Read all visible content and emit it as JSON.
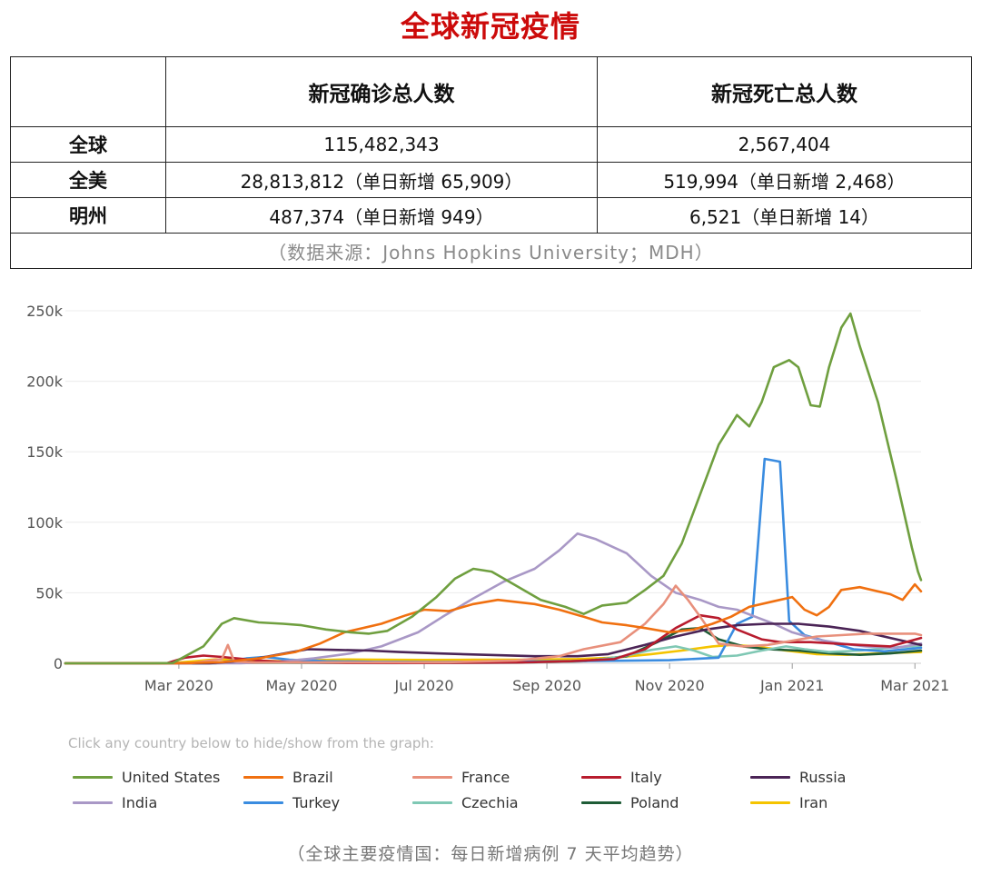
{
  "headline": "全球新冠疫情",
  "table": {
    "header": [
      "",
      "新冠确诊总人数",
      "新冠死亡总人数"
    ],
    "rows": [
      {
        "label": "全球",
        "cases": "115,482,343",
        "deaths": "2,567,404"
      },
      {
        "label": "全美",
        "cases": "28,813,812（单日新增 65,909）",
        "deaths": "519,994（单日新增 2,468）"
      },
      {
        "label": "明州",
        "cases": "487,374（单日新增 949）",
        "deaths": "6,521（单日新增 14）"
      }
    ],
    "source": "（数据来源：Johns Hopkins University；MDH）"
  },
  "legend_hint": "Click any country below to hide/show from the graph:",
  "caption": "（全球主要疫情国：每日新增病例 7 天平均趋势）",
  "chart_data": {
    "type": "line",
    "x_unit": "month (0 = Jan 2020)",
    "x_ticks": [
      {
        "x": 2,
        "label": "Mar 2020"
      },
      {
        "x": 4,
        "label": "May 2020"
      },
      {
        "x": 6,
        "label": "Jul 2020"
      },
      {
        "x": 8,
        "label": "Sep 2020"
      },
      {
        "x": 10,
        "label": "Nov 2020"
      },
      {
        "x": 12,
        "label": "Jan 2021"
      },
      {
        "x": 14,
        "label": "Mar 2021"
      }
    ],
    "y_ticks": [
      {
        "y": 0,
        "label": "0"
      },
      {
        "y": 50000,
        "label": "50k"
      },
      {
        "y": 100000,
        "label": "100k"
      },
      {
        "y": 150000,
        "label": "150k"
      },
      {
        "y": 200000,
        "label": "200k"
      },
      {
        "y": 250000,
        "label": "250k"
      }
    ],
    "xlim": [
      0.15,
      14.1
    ],
    "ylim": [
      0,
      250000
    ],
    "grid": true,
    "series": [
      {
        "name": "United States",
        "color": "#6f9f3f",
        "points": [
          [
            0.15,
            0
          ],
          [
            1.5,
            0
          ],
          [
            1.9,
            200
          ],
          [
            2.4,
            12000
          ],
          [
            2.7,
            28000
          ],
          [
            2.9,
            32000
          ],
          [
            3.3,
            29000
          ],
          [
            3.7,
            28000
          ],
          [
            4.0,
            27000
          ],
          [
            4.4,
            24000
          ],
          [
            4.8,
            22000
          ],
          [
            5.1,
            21000
          ],
          [
            5.4,
            23000
          ],
          [
            5.8,
            33000
          ],
          [
            6.2,
            47000
          ],
          [
            6.5,
            60000
          ],
          [
            6.8,
            67000
          ],
          [
            7.1,
            65000
          ],
          [
            7.5,
            55000
          ],
          [
            7.9,
            45000
          ],
          [
            8.3,
            40000
          ],
          [
            8.6,
            35000
          ],
          [
            8.9,
            41000
          ],
          [
            9.3,
            43000
          ],
          [
            9.6,
            52000
          ],
          [
            9.9,
            62000
          ],
          [
            10.2,
            85000
          ],
          [
            10.5,
            120000
          ],
          [
            10.8,
            155000
          ],
          [
            11.1,
            176000
          ],
          [
            11.3,
            168000
          ],
          [
            11.5,
            185000
          ],
          [
            11.7,
            210000
          ],
          [
            11.95,
            215000
          ],
          [
            12.1,
            210000
          ],
          [
            12.3,
            183000
          ],
          [
            12.45,
            182000
          ],
          [
            12.6,
            210000
          ],
          [
            12.8,
            238000
          ],
          [
            12.95,
            248000
          ],
          [
            13.1,
            225000
          ],
          [
            13.4,
            185000
          ],
          [
            13.7,
            130000
          ],
          [
            13.95,
            82000
          ],
          [
            14.05,
            65000
          ],
          [
            14.1,
            59000
          ]
        ]
      },
      {
        "name": "Brazil",
        "color": "#f07010",
        "points": [
          [
            0.15,
            0
          ],
          [
            2.0,
            0
          ],
          [
            2.7,
            800
          ],
          [
            3.3,
            3500
          ],
          [
            3.9,
            8000
          ],
          [
            4.3,
            14000
          ],
          [
            4.7,
            22000
          ],
          [
            5.3,
            28000
          ],
          [
            5.7,
            34000
          ],
          [
            6.0,
            38000
          ],
          [
            6.4,
            37000
          ],
          [
            6.8,
            42000
          ],
          [
            7.2,
            45000
          ],
          [
            7.8,
            42000
          ],
          [
            8.2,
            38000
          ],
          [
            8.6,
            33000
          ],
          [
            8.9,
            29000
          ],
          [
            9.3,
            27000
          ],
          [
            9.6,
            25000
          ],
          [
            10.0,
            22000
          ],
          [
            10.4,
            24000
          ],
          [
            10.7,
            28000
          ],
          [
            11.0,
            33000
          ],
          [
            11.3,
            40000
          ],
          [
            11.7,
            44000
          ],
          [
            12.0,
            47000
          ],
          [
            12.2,
            38000
          ],
          [
            12.4,
            34000
          ],
          [
            12.6,
            40000
          ],
          [
            12.8,
            52000
          ],
          [
            13.1,
            54000
          ],
          [
            13.6,
            49000
          ],
          [
            13.8,
            45000
          ],
          [
            14.0,
            56000
          ],
          [
            14.1,
            51000
          ]
        ]
      },
      {
        "name": "France",
        "color": "#e8907c",
        "points": [
          [
            0.15,
            0
          ],
          [
            2.2,
            0
          ],
          [
            2.7,
            3000
          ],
          [
            2.8,
            13000
          ],
          [
            2.9,
            1500
          ],
          [
            3.2,
            500
          ],
          [
            4.4,
            700
          ],
          [
            5.6,
            600
          ],
          [
            6.4,
            800
          ],
          [
            7.5,
            2000
          ],
          [
            8.2,
            5000
          ],
          [
            8.6,
            10000
          ],
          [
            9.2,
            15000
          ],
          [
            9.6,
            28000
          ],
          [
            9.9,
            42000
          ],
          [
            10.1,
            55000
          ],
          [
            10.3,
            45000
          ],
          [
            10.5,
            33000
          ],
          [
            10.8,
            14000
          ],
          [
            11.2,
            12000
          ],
          [
            11.6,
            13000
          ],
          [
            12.0,
            16000
          ],
          [
            12.4,
            19000
          ],
          [
            12.8,
            20000
          ],
          [
            13.2,
            21000
          ],
          [
            13.6,
            21000
          ],
          [
            14.0,
            21000
          ],
          [
            14.1,
            20000
          ]
        ]
      },
      {
        "name": "Italy",
        "color": "#b81c2e",
        "points": [
          [
            0.15,
            0
          ],
          [
            1.8,
            0
          ],
          [
            2.1,
            4000
          ],
          [
            2.4,
            5500
          ],
          [
            2.7,
            4500
          ],
          [
            3.3,
            2000
          ],
          [
            3.8,
            700
          ],
          [
            4.6,
            300
          ],
          [
            5.6,
            200
          ],
          [
            6.6,
            300
          ],
          [
            7.6,
            600
          ],
          [
            8.4,
            1500
          ],
          [
            9.1,
            3000
          ],
          [
            9.6,
            10000
          ],
          [
            10.1,
            25000
          ],
          [
            10.5,
            34000
          ],
          [
            10.8,
            32000
          ],
          [
            11.1,
            24000
          ],
          [
            11.5,
            17000
          ],
          [
            11.8,
            15000
          ],
          [
            12.3,
            15000
          ],
          [
            12.7,
            14000
          ],
          [
            13.1,
            13000
          ],
          [
            13.6,
            12000
          ],
          [
            14.1,
            18000
          ]
        ]
      },
      {
        "name": "Russia",
        "color": "#4b2456",
        "points": [
          [
            0.15,
            0
          ],
          [
            2.5,
            0
          ],
          [
            3.1,
            2000
          ],
          [
            3.6,
            6000
          ],
          [
            4.1,
            10000
          ],
          [
            4.6,
            9500
          ],
          [
            5.1,
            9000
          ],
          [
            5.6,
            8000
          ],
          [
            6.2,
            7000
          ],
          [
            7.0,
            6000
          ],
          [
            7.8,
            5000
          ],
          [
            8.5,
            5000
          ],
          [
            9.0,
            6500
          ],
          [
            9.6,
            13000
          ],
          [
            10.1,
            19000
          ],
          [
            10.6,
            24000
          ],
          [
            11.1,
            27000
          ],
          [
            11.6,
            28000
          ],
          [
            12.1,
            28000
          ],
          [
            12.6,
            26000
          ],
          [
            13.1,
            23000
          ],
          [
            13.6,
            18000
          ],
          [
            14.1,
            13000
          ]
        ]
      },
      {
        "name": "India",
        "color": "#a998c6",
        "points": [
          [
            0.15,
            0
          ],
          [
            3.0,
            0
          ],
          [
            3.6,
            1000
          ],
          [
            4.2,
            3500
          ],
          [
            4.8,
            7000
          ],
          [
            5.3,
            12000
          ],
          [
            5.9,
            22000
          ],
          [
            6.3,
            33000
          ],
          [
            6.8,
            46000
          ],
          [
            7.3,
            58000
          ],
          [
            7.8,
            67000
          ],
          [
            8.2,
            80000
          ],
          [
            8.5,
            92000
          ],
          [
            8.8,
            88000
          ],
          [
            9.3,
            78000
          ],
          [
            9.7,
            62000
          ],
          [
            10.1,
            50000
          ],
          [
            10.5,
            45000
          ],
          [
            10.8,
            40000
          ],
          [
            11.1,
            38000
          ],
          [
            11.4,
            33000
          ],
          [
            11.7,
            28000
          ],
          [
            12.0,
            22000
          ],
          [
            12.4,
            17000
          ],
          [
            12.8,
            14000
          ],
          [
            13.2,
            12000
          ],
          [
            13.7,
            11000
          ],
          [
            14.1,
            14000
          ]
        ]
      },
      {
        "name": "Turkey",
        "color": "#3a8ce0",
        "points": [
          [
            0.15,
            0
          ],
          [
            2.6,
            0
          ],
          [
            3.1,
            3500
          ],
          [
            3.4,
            4500
          ],
          [
            3.8,
            2500
          ],
          [
            4.4,
            1500
          ],
          [
            5.2,
            1000
          ],
          [
            6.2,
            900
          ],
          [
            7.2,
            1100
          ],
          [
            8.2,
            1500
          ],
          [
            9.2,
            1800
          ],
          [
            10.0,
            2200
          ],
          [
            10.8,
            4000
          ],
          [
            11.1,
            28000
          ],
          [
            11.35,
            33000
          ],
          [
            11.55,
            145000
          ],
          [
            11.8,
            143000
          ],
          [
            11.95,
            30000
          ],
          [
            12.2,
            20000
          ],
          [
            12.6,
            15000
          ],
          [
            13.0,
            10000
          ],
          [
            13.5,
            8500
          ],
          [
            14.1,
            11000
          ]
        ]
      },
      {
        "name": "Czechia",
        "color": "#7fc8b4",
        "points": [
          [
            0.15,
            0
          ],
          [
            2.4,
            0
          ],
          [
            2.9,
            300
          ],
          [
            3.5,
            250
          ],
          [
            5.5,
            150
          ],
          [
            7.5,
            300
          ],
          [
            8.6,
            1500
          ],
          [
            9.2,
            4500
          ],
          [
            9.7,
            9500
          ],
          [
            10.1,
            12000
          ],
          [
            10.4,
            9000
          ],
          [
            10.7,
            4500
          ],
          [
            11.1,
            5500
          ],
          [
            11.5,
            9000
          ],
          [
            11.9,
            12000
          ],
          [
            12.2,
            10000
          ],
          [
            12.6,
            8000
          ],
          [
            13.1,
            9000
          ],
          [
            13.6,
            11000
          ],
          [
            14.1,
            12500
          ]
        ]
      },
      {
        "name": "Poland",
        "color": "#1e5c36",
        "points": [
          [
            0.15,
            0
          ],
          [
            2.4,
            0
          ],
          [
            2.9,
            300
          ],
          [
            4.0,
            400
          ],
          [
            6.0,
            350
          ],
          [
            7.6,
            600
          ],
          [
            8.6,
            1500
          ],
          [
            9.3,
            5000
          ],
          [
            9.8,
            15000
          ],
          [
            10.2,
            24000
          ],
          [
            10.5,
            25000
          ],
          [
            10.8,
            17000
          ],
          [
            11.2,
            12000
          ],
          [
            11.6,
            10000
          ],
          [
            12.1,
            9000
          ],
          [
            12.6,
            7000
          ],
          [
            13.1,
            6000
          ],
          [
            13.6,
            7000
          ],
          [
            14.1,
            9000
          ]
        ]
      },
      {
        "name": "Iran",
        "color": "#f5c400",
        "points": [
          [
            0.15,
            0
          ],
          [
            1.8,
            0
          ],
          [
            2.2,
            1200
          ],
          [
            2.6,
            2800
          ],
          [
            3.1,
            2200
          ],
          [
            3.6,
            1500
          ],
          [
            4.2,
            2200
          ],
          [
            4.7,
            2700
          ],
          [
            5.3,
            2600
          ],
          [
            6.0,
            2400
          ],
          [
            6.8,
            2500
          ],
          [
            7.6,
            2600
          ],
          [
            8.5,
            3000
          ],
          [
            9.1,
            4000
          ],
          [
            9.7,
            6500
          ],
          [
            10.2,
            9000
          ],
          [
            10.7,
            12000
          ],
          [
            11.0,
            13000
          ],
          [
            11.4,
            12000
          ],
          [
            11.9,
            9000
          ],
          [
            12.4,
            6500
          ],
          [
            12.9,
            6000
          ],
          [
            13.4,
            7000
          ],
          [
            14.1,
            8000
          ]
        ]
      }
    ]
  }
}
